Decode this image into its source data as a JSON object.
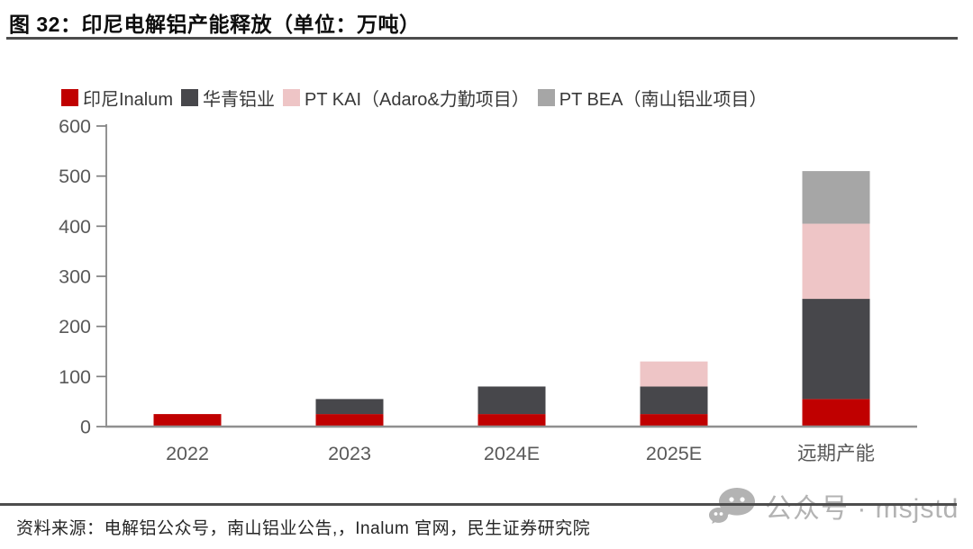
{
  "header": {
    "title": "图 32：印尼电解铝产能释放（单位：万吨）"
  },
  "chart_data": {
    "type": "bar",
    "stacked": true,
    "title": "印尼电解铝产能释放",
    "unit": "万吨",
    "categories": [
      "2022",
      "2023",
      "2024E",
      "2025E",
      "远期产能"
    ],
    "series": [
      {
        "name": "印尼Inalum",
        "color": "#C00000",
        "values": [
          25,
          25,
          25,
          25,
          55
        ]
      },
      {
        "name": "华青铝业",
        "color": "#47474B",
        "values": [
          0,
          30,
          55,
          55,
          200
        ]
      },
      {
        "name": "PT KAI（Adaro&力勤项目）",
        "color": "#EEC5C6",
        "values": [
          0,
          0,
          0,
          50,
          150
        ]
      },
      {
        "name": "PT BEA（南山铝业项目）",
        "color": "#A6A6A6",
        "values": [
          0,
          0,
          0,
          0,
          105
        ]
      }
    ],
    "totals": [
      25,
      55,
      80,
      130,
      510
    ],
    "ylim": [
      0,
      600
    ],
    "ytick_interval": 100,
    "yticks": [
      0,
      100,
      200,
      300,
      400,
      500,
      600
    ],
    "grid": false,
    "legend_position": "top-left",
    "axis_color": "#808080",
    "tick_label_color": "#595959"
  },
  "footer": {
    "source": "资料来源：电解铝公众号，南山铝业公告,，Inalum 官网，民生证券研究院",
    "watermark": "公众号 · msjstd"
  }
}
